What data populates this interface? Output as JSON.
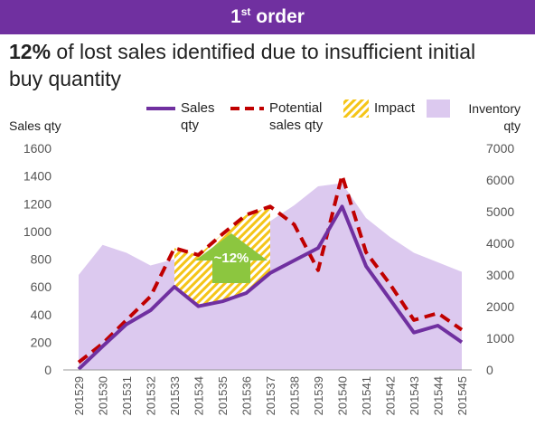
{
  "banner": {
    "main": "1",
    "sup": "st",
    "rest": " order"
  },
  "headline": {
    "bold": "12%",
    "line1_rest": " of lost sales identified due to insufficient initial",
    "line2": "buy quantity"
  },
  "colors": {
    "banner": "#7030a0",
    "sales": "#7030a0",
    "potential": "#c00000",
    "impact": "#f5c518",
    "inventory": "#dcc9ef",
    "arrow": "#8cc63f"
  },
  "chart_data": {
    "type": "line",
    "left_axis_label": "Sales qty",
    "right_axis_label": [
      "Inventory",
      "qty"
    ],
    "categories": [
      "201529",
      "201530",
      "201531",
      "201532",
      "201533",
      "201534",
      "201535",
      "201536",
      "201537",
      "201538",
      "201539",
      "201540",
      "201541",
      "201542",
      "201543",
      "201544",
      "201545"
    ],
    "y_left": {
      "min": 0,
      "max": 1600,
      "ticks": [
        "0",
        "200",
        "400",
        "600",
        "800",
        "1000",
        "1200",
        "1400",
        "1600"
      ]
    },
    "y_right": {
      "min": 0,
      "max": 7000,
      "ticks": [
        "0",
        "1000",
        "2000",
        "3000",
        "4000",
        "5000",
        "6000",
        "7000"
      ]
    },
    "series": [
      {
        "name": "Sales qty",
        "name_lines": [
          "Sales",
          "qty"
        ],
        "axis": "left",
        "style": "solid",
        "values": [
          5,
          170,
          330,
          430,
          600,
          460,
          495,
          555,
          700,
          790,
          880,
          1180,
          750,
          510,
          270,
          320,
          200
        ]
      },
      {
        "name": "Potential sales qty",
        "name_lines": [
          "Potential",
          "sales qty"
        ],
        "axis": "left",
        "style": "dashed",
        "values": [
          55,
          190,
          360,
          530,
          880,
          830,
          980,
          1120,
          1180,
          1050,
          720,
          1405,
          850,
          620,
          360,
          410,
          290
        ]
      },
      {
        "name": "Impact",
        "name_lines": [
          "Impact"
        ],
        "style": "hatched-area",
        "range": [
          "201533",
          "201537"
        ]
      },
      {
        "name": "Inventory qty",
        "name_lines": [
          "Inventory",
          "qty"
        ],
        "axis": "right",
        "style": "area",
        "values": [
          3000,
          3950,
          3700,
          3300,
          3500,
          3550,
          3950,
          4150,
          4700,
          5200,
          5800,
          5900,
          4800,
          4200,
          3700,
          3400,
          3100
        ]
      }
    ],
    "annotation": {
      "text": "~12%"
    }
  }
}
